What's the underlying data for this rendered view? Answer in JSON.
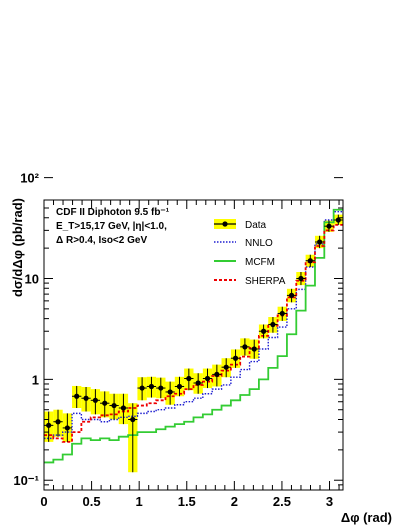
{
  "chart_data": {
    "type": "line",
    "xlabel": "Δφ (rad)",
    "ylabel": "dσ/dΔφ (pb/rad)",
    "xlim": [
      0,
      3.1416
    ],
    "ylim": [
      0.08,
      60
    ],
    "y_scale": "log",
    "x_ticks": [
      0,
      0.5,
      1,
      1.5,
      2,
      2.5,
      3
    ],
    "x_tick_labels": [
      "0",
      "0.5",
      "1",
      "1.5",
      "2",
      "2.5",
      "3"
    ],
    "y_ticks": [
      0.1,
      1,
      10,
      100
    ],
    "y_tick_labels": [
      "10⁻¹",
      "1",
      "10",
      "10²"
    ],
    "annotation": [
      "CDF II  Diphoton  9.5 fb⁻¹",
      "E_T>15,17 GeV, |η|<1.0,",
      "Δ R>0.4, Iso<2 GeV"
    ],
    "legend_position": "top-right",
    "bin_edges": [
      0,
      0.0982,
      0.1963,
      0.2945,
      0.3927,
      0.4909,
      0.589,
      0.6872,
      0.7854,
      0.8836,
      0.9817,
      1.0799,
      1.1781,
      1.2763,
      1.3744,
      1.4726,
      1.5708,
      1.669,
      1.7671,
      1.8653,
      1.9635,
      2.0617,
      2.1598,
      2.258,
      2.3562,
      2.4544,
      2.5525,
      2.6507,
      2.7489,
      2.8471,
      2.9452,
      3.0434,
      3.1416
    ],
    "series": [
      {
        "name": "Data",
        "style": "points-with-error-band",
        "color": "#000000",
        "band_color": "#ffff00",
        "values": [
          0.35,
          0.38,
          0.33,
          0.68,
          0.65,
          0.62,
          0.58,
          0.55,
          0.52,
          0.4,
          0.82,
          0.85,
          0.82,
          0.75,
          0.85,
          1.02,
          0.92,
          1.02,
          1.12,
          1.32,
          1.62,
          2.1,
          2.0,
          3.0,
          3.5,
          4.5,
          6.8,
          10.0,
          15.0,
          23.0,
          33.0,
          38.0
        ],
        "err_low": [
          0.24,
          0.27,
          0.24,
          0.52,
          0.48,
          0.45,
          0.42,
          0.4,
          0.36,
          0.12,
          0.62,
          0.66,
          0.65,
          0.56,
          0.68,
          0.78,
          0.72,
          0.82,
          0.85,
          1.05,
          1.3,
          1.72,
          1.6,
          2.55,
          2.9,
          3.8,
          5.8,
          8.6,
          13.0,
          20.0,
          29.0,
          34.0
        ],
        "err_high": [
          0.48,
          0.5,
          0.46,
          0.86,
          0.84,
          0.8,
          0.76,
          0.72,
          0.72,
          0.58,
          1.05,
          1.06,
          1.04,
          0.95,
          1.06,
          1.28,
          1.15,
          1.28,
          1.4,
          1.62,
          1.98,
          2.55,
          2.48,
          3.5,
          4.15,
          5.25,
          7.9,
          11.6,
          17.2,
          26.5,
          37.5,
          43.0
        ]
      },
      {
        "name": "NNLO",
        "style": "step-dotted",
        "color": "#1f1fd0",
        "values": [
          0.26,
          0.28,
          0.3,
          0.46,
          0.4,
          0.4,
          0.38,
          0.4,
          0.42,
          0.43,
          0.46,
          0.48,
          0.5,
          0.52,
          0.56,
          0.6,
          0.65,
          0.72,
          0.8,
          0.88,
          1.05,
          1.25,
          1.5,
          2.0,
          2.6,
          3.3,
          5.0,
          7.8,
          13.0,
          22.0,
          38.0,
          46.0
        ]
      },
      {
        "name": "MCFM",
        "style": "step-solid",
        "color": "#33cc33",
        "values": [
          0.15,
          0.16,
          0.18,
          0.23,
          0.26,
          0.25,
          0.26,
          0.25,
          0.27,
          0.28,
          0.3,
          0.3,
          0.32,
          0.34,
          0.36,
          0.38,
          0.42,
          0.45,
          0.5,
          0.55,
          0.62,
          0.7,
          0.8,
          1.0,
          1.3,
          1.7,
          2.8,
          4.8,
          8.5,
          16.0,
          36.0,
          48.0
        ]
      },
      {
        "name": "SHERPA",
        "style": "step-dashed",
        "color": "#ee0000",
        "values": [
          0.28,
          0.26,
          0.24,
          0.3,
          0.38,
          0.42,
          0.44,
          0.45,
          0.48,
          0.52,
          0.55,
          0.58,
          0.62,
          0.68,
          0.72,
          0.8,
          0.88,
          0.95,
          1.08,
          1.22,
          1.4,
          1.68,
          2.05,
          2.7,
          3.4,
          4.3,
          6.5,
          9.5,
          14.5,
          21.0,
          30.0,
          34.0
        ]
      }
    ]
  }
}
